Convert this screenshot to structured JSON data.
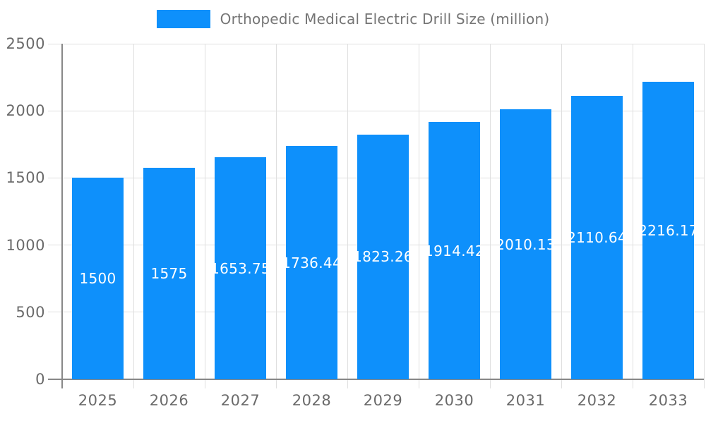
{
  "chart": {
    "legend_label": "Orthopedic Medical Electric Drill Size (million)"
  },
  "chart_data": {
    "type": "bar",
    "title": "Orthopedic Medical Electric Drill Size (million)",
    "legend": [
      "Orthopedic Medical Electric Drill Size (million)"
    ],
    "legend_position": "top",
    "categories": [
      "2025",
      "2026",
      "2027",
      "2028",
      "2029",
      "2030",
      "2031",
      "2032",
      "2033"
    ],
    "values": [
      1500,
      1575,
      1653.75,
      1736.44,
      1823.26,
      1914.42,
      2010.13,
      2110.64,
      2216.17
    ],
    "value_labels": [
      "1500",
      "1575",
      "1653.75",
      "1736.44",
      "1823.26",
      "1914.42",
      "2010.13",
      "2110.64",
      "2216.17"
    ],
    "xlabel": "",
    "ylabel": "",
    "ylim": [
      0,
      2500
    ],
    "yticks": [
      0,
      500,
      1000,
      1500,
      2000,
      2500
    ],
    "grid": true,
    "colors": {
      "bar": "#0E90FB",
      "axis_line": "#888888",
      "grid_line": "#dfdfdf",
      "tick_label": "#6a6a6a",
      "legend_text": "#757575",
      "bar_label_text": "#ffffff"
    }
  }
}
